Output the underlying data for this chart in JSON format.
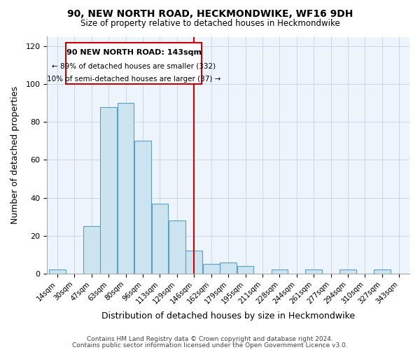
{
  "title": "90, NEW NORTH ROAD, HECKMONDWIKE, WF16 9DH",
  "subtitle": "Size of property relative to detached houses in Heckmondwike",
  "xlabel": "Distribution of detached houses by size in Heckmondwike",
  "ylabel": "Number of detached properties",
  "bin_labels": [
    "14sqm",
    "30sqm",
    "47sqm",
    "63sqm",
    "80sqm",
    "96sqm",
    "113sqm",
    "129sqm",
    "146sqm",
    "162sqm",
    "179sqm",
    "195sqm",
    "211sqm",
    "228sqm",
    "244sqm",
    "261sqm",
    "277sqm",
    "294sqm",
    "310sqm",
    "327sqm",
    "343sqm"
  ],
  "bar_heights": [
    2,
    0,
    25,
    88,
    90,
    70,
    37,
    28,
    12,
    5,
    6,
    4,
    0,
    2,
    0,
    2,
    0,
    2,
    0,
    2,
    0
  ],
  "bar_color": "#cce4f0",
  "bar_edge_color": "#5a9fc8",
  "vline_x_index": 8,
  "vline_color": "#cc0000",
  "annotation_title": "90 NEW NORTH ROAD: 143sqm",
  "annotation_line1": "← 89% of detached houses are smaller (332)",
  "annotation_line2": "10% of semi-detached houses are larger (37) →",
  "annotation_box_color": "#ffffff",
  "annotation_box_edge": "#cc0000",
  "ylim": [
    0,
    125
  ],
  "yticks": [
    0,
    20,
    40,
    60,
    80,
    100,
    120
  ],
  "footer1": "Contains HM Land Registry data © Crown copyright and database right 2024.",
  "footer2": "Contains public sector information licensed under the Open Government Licence v3.0.",
  "bg_color": "#eef4fb"
}
